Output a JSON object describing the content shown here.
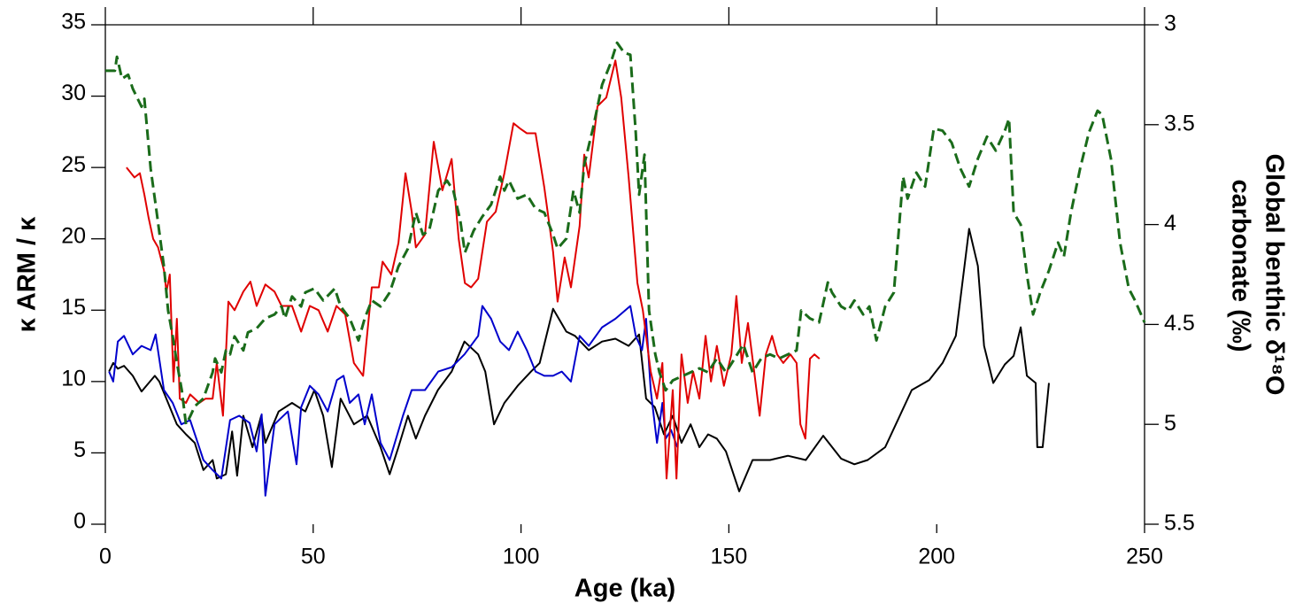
{
  "chart_data": {
    "type": "line",
    "xlabel": "Age (ka)",
    "ylabel": "κ ARM / κ",
    "y2label": [
      "Global benthic δ¹⁸O",
      "carbonate (‰)"
    ],
    "xlim": [
      0,
      250
    ],
    "xticks": [
      0,
      50,
      100,
      150,
      200,
      250
    ],
    "ylim": [
      0,
      35
    ],
    "yticks": [
      0,
      5,
      10,
      15,
      20,
      25,
      30,
      35
    ],
    "y2lim": [
      5.5,
      3
    ],
    "y2ticks": [
      3,
      3.5,
      4,
      4.5,
      5,
      5.5
    ],
    "series": [
      {
        "color": "#000000",
        "linestyle": "solid",
        "x": [
          0.9,
          1.9,
          3,
          4.5,
          6.6,
          8.7,
          11.9,
          13,
          15.1,
          17.2,
          19.4,
          21.5,
          23.6,
          25.8,
          26.8,
          29,
          30.5,
          31.7,
          33.2,
          35.4,
          37.5,
          38.5,
          41.7,
          44.9,
          48.1,
          50.3,
          52.4,
          54.5,
          56.6,
          59.8,
          63,
          66.2,
          68.4,
          70.5,
          72.8,
          74.7,
          76.9,
          80,
          83.3,
          86.4,
          89.7,
          91.4,
          93.5,
          96,
          99.2,
          102.4,
          104.5,
          107.7,
          110.9,
          113,
          116.3,
          119.5,
          122.7,
          125.9,
          128.4,
          130.1,
          132.2,
          134.4,
          136.5,
          138.6,
          140.8,
          142.9,
          145,
          147.1,
          149.3,
          152.5,
          155.7,
          159.9,
          164.2,
          168.5,
          172.7,
          177,
          180.2,
          183.4,
          187.6,
          194,
          198.2,
          201.4,
          204.6,
          207.8,
          209.9,
          211.4,
          213.6,
          216.4,
          218.5,
          220.2,
          221.7,
          223.8,
          224.2,
          225.5,
          227
        ],
        "values": [
          10.7,
          11.3,
          10.9,
          11.1,
          10.4,
          9.3,
          10.4,
          10,
          8.5,
          7,
          6.3,
          5.7,
          3.8,
          4.5,
          3.2,
          3.5,
          6.5,
          3.4,
          7.6,
          5.4,
          7.6,
          5.7,
          7.9,
          8.5,
          7.9,
          9.4,
          7.6,
          4,
          8.8,
          7,
          7.6,
          5.4,
          3.5,
          5.4,
          7.6,
          6,
          7.6,
          9.4,
          10.7,
          12.8,
          11.9,
          10.7,
          7,
          8.5,
          9.7,
          10.7,
          11.3,
          15.1,
          13.5,
          13.2,
          12.2,
          12.8,
          13,
          12.5,
          13.3,
          8.8,
          8.2,
          6.3,
          7.6,
          5.7,
          7,
          5.4,
          6.3,
          6,
          5.1,
          2.3,
          4.5,
          4.5,
          4.8,
          4.5,
          6.2,
          4.6,
          4.2,
          4.5,
          5.4,
          9.4,
          10.1,
          11.3,
          13.2,
          20.7,
          18.1,
          12.5,
          9.9,
          11.2,
          11.8,
          13.8,
          10.4,
          9.9,
          5.4,
          5.4,
          9.9
        ]
      },
      {
        "color": "#0000cc",
        "linestyle": "solid",
        "x": [
          0.9,
          1.9,
          3,
          4.5,
          6.6,
          8.7,
          10.9,
          12.1,
          14.1,
          16.2,
          18.3,
          20.4,
          21.9,
          23.6,
          25.8,
          27.9,
          30,
          32.2,
          34.7,
          36.4,
          37.6,
          38.5,
          40.7,
          43.9,
          46,
          47.1,
          49.2,
          51.3,
          53.5,
          55.7,
          57.3,
          58.8,
          60.9,
          62.4,
          64.1,
          66.2,
          68.4,
          71.6,
          73.7,
          76.9,
          80.1,
          83.3,
          86.4,
          89.7,
          90.7,
          92.8,
          95,
          97.1,
          99.2,
          101.4,
          103.5,
          105.6,
          107.7,
          109.8,
          112,
          114.1,
          116.3,
          119.5,
          122.7,
          126.3,
          127.6,
          129.1,
          130.1,
          131.2,
          132.7,
          134,
          134.8,
          136.1,
          137.6
        ],
        "values": [
          10.7,
          10,
          12.8,
          13.2,
          11.9,
          12.5,
          12.2,
          13.3,
          9.4,
          8.5,
          7,
          7.3,
          6,
          4.5,
          3.8,
          3.2,
          7.3,
          7.6,
          7.1,
          5.1,
          7.7,
          2,
          7,
          7.9,
          4.2,
          8.2,
          9.7,
          9.1,
          7.9,
          10.1,
          10.4,
          8.5,
          9.1,
          7,
          9.1,
          5.7,
          4.5,
          7.6,
          9.4,
          9.4,
          10.7,
          11,
          11.9,
          13.2,
          15.3,
          14.4,
          12.8,
          12.2,
          13.5,
          12.2,
          10.7,
          10.4,
          10.4,
          10.7,
          10,
          13.2,
          12.5,
          13.8,
          14.4,
          15.3,
          13.2,
          12.2,
          14.4,
          9.4,
          5.7,
          8.5,
          6,
          6.6,
          5.4
        ]
      },
      {
        "color": "#e00000",
        "linestyle": "solid",
        "x": [
          5.1,
          6.2,
          7,
          8.3,
          9.4,
          10.4,
          11.5,
          12.7,
          14.1,
          14.7,
          15.5,
          16.4,
          17.2,
          17.9,
          19.4,
          20.4,
          22.6,
          24.1,
          25.8,
          26.8,
          28.3,
          29.6,
          31.1,
          33.2,
          34.9,
          36.4,
          38.5,
          40.7,
          42.4,
          44.9,
          47.1,
          49.2,
          51.3,
          53.5,
          55.6,
          57.7,
          59.8,
          62,
          64.1,
          65.8,
          66.7,
          68.8,
          70.5,
          72.2,
          73.7,
          74.7,
          76.9,
          79,
          81.1,
          83.3,
          85,
          86.5,
          88,
          89.7,
          91.8,
          93.9,
          96,
          98.2,
          99.9,
          101.4,
          103.5,
          105.6,
          107.7,
          108.8,
          110.5,
          112,
          114.1,
          115.2,
          116.3,
          118.4,
          120.5,
          122.7,
          124.1,
          125.9,
          128,
          129.3,
          130.1,
          131.2,
          132.7,
          134,
          135,
          136.5,
          137.4,
          138.6,
          140.1,
          141.4,
          142.9,
          144.4,
          145.7,
          147.1,
          148.8,
          150.6,
          151.8,
          153.1,
          154.6,
          156.1,
          157.4,
          158.9,
          160.4,
          161.6,
          163.1,
          164.8,
          166.3,
          167.2,
          168.4,
          169.5,
          170.6,
          171.8
        ],
        "values": [
          25,
          24.6,
          24.3,
          24.6,
          23.1,
          21.5,
          20,
          19.4,
          17.8,
          16.3,
          17.5,
          10,
          14.4,
          8.8,
          8.5,
          9.1,
          8.5,
          8.8,
          8.8,
          11.3,
          7.6,
          15.6,
          15,
          16.3,
          17,
          15.3,
          16.8,
          16.3,
          15.3,
          15.3,
          13.5,
          15.3,
          15,
          13.5,
          15.3,
          14.7,
          11.3,
          10.4,
          16.6,
          16.6,
          18.4,
          17.5,
          19.7,
          24.6,
          21.9,
          19.4,
          20.3,
          26.8,
          23.4,
          25.6,
          20,
          16.9,
          16.6,
          17.2,
          21.2,
          21.9,
          24.6,
          28.1,
          27.7,
          27.4,
          27.4,
          23.6,
          19.1,
          15.6,
          18.7,
          16.6,
          20.9,
          25.9,
          24.3,
          29.3,
          29.9,
          32.5,
          29.9,
          24.3,
          16.9,
          15,
          13.2,
          10.7,
          8.8,
          11.3,
          3.2,
          9.4,
          3.2,
          11.9,
          8.5,
          10.7,
          8.8,
          13.2,
          10,
          12.5,
          9.7,
          11.9,
          16,
          11.3,
          14.1,
          10.7,
          7.6,
          11.9,
          13.2,
          11.9,
          11.3,
          11.9,
          11.3,
          7,
          6,
          11.6,
          11.9,
          11.6
        ]
      },
      {
        "color": "#1a6b1a",
        "linestyle": "dashed",
        "axis": "y2",
        "x": [
          0,
          2.3,
          2.8,
          4,
          5.5,
          6.6,
          8.7,
          9.4,
          10.9,
          12.1,
          14.1,
          15.1,
          16.2,
          17.2,
          18.4,
          19.4,
          20.4,
          21.5,
          23.6,
          25.8,
          26.4,
          27.9,
          29,
          30,
          31.1,
          33.2,
          34.3,
          36.4,
          38.5,
          40.7,
          42.4,
          43.2,
          44.9,
          47.1,
          48.1,
          50.3,
          52.4,
          55.2,
          56.6,
          58.8,
          60.9,
          62.4,
          64.1,
          66.2,
          68.4,
          70.5,
          72.8,
          74.7,
          76.4,
          77.9,
          80.1,
          82.2,
          83.7,
          85.4,
          86.5,
          88.6,
          90.7,
          92.8,
          95,
          96,
          97.1,
          99.2,
          101.4,
          103.5,
          105.6,
          107.7,
          108.8,
          110.9,
          112.6,
          114.1,
          115.2,
          117.3,
          119.5,
          121.6,
          123.1,
          124.8,
          126.3,
          127.6,
          128.4,
          129.7,
          130.8,
          132.3,
          133.3,
          134.8,
          136.5,
          138.6,
          140.8,
          142.9,
          145,
          147.1,
          149.3,
          151.4,
          153.5,
          155.7,
          157.8,
          159.9,
          162.1,
          164.2,
          166.3,
          167.4,
          169.5,
          171.7,
          173.8,
          174.8,
          177,
          178.7,
          180.2,
          182.3,
          183.8,
          185.5,
          187.6,
          189.7,
          191.9,
          193,
          195.1,
          197.2,
          199.3,
          201.4,
          203.6,
          205.7,
          207.8,
          209.9,
          212.1,
          214.2,
          216.4,
          217.4,
          218.5,
          220.2,
          221.7,
          223.2,
          224.9,
          227,
          229.2,
          230.6,
          232.3,
          234.5,
          236.6,
          238.7,
          239.8,
          241.9,
          244.1,
          246.2,
          247.7,
          250
        ],
        "values": [
          3.23,
          3.23,
          3.16,
          3.27,
          3.25,
          3.32,
          3.41,
          3.37,
          3.72,
          3.9,
          4.21,
          4.43,
          4.56,
          4.69,
          4.83,
          5,
          4.96,
          4.91,
          4.87,
          4.74,
          4.67,
          4.74,
          4.63,
          4.65,
          4.56,
          4.63,
          4.54,
          4.52,
          4.47,
          4.45,
          4.41,
          4.47,
          4.36,
          4.41,
          4.34,
          4.32,
          4.38,
          4.32,
          4.41,
          4.47,
          4.58,
          4.47,
          4.38,
          4.41,
          4.34,
          4.21,
          4.12,
          3.94,
          4.05,
          4.03,
          3.83,
          3.78,
          3.83,
          3.98,
          4.14,
          4.03,
          3.96,
          3.9,
          3.76,
          3.83,
          3.78,
          3.87,
          3.85,
          3.92,
          3.94,
          4.05,
          4.12,
          4.07,
          3.83,
          3.94,
          3.7,
          3.52,
          3.3,
          3.19,
          3.09,
          3.14,
          3.15,
          3.54,
          3.85,
          3.65,
          4.43,
          4.65,
          4.74,
          4.83,
          4.78,
          4.76,
          4.74,
          4.72,
          4.74,
          4.67,
          4.74,
          4.67,
          4.6,
          4.74,
          4.67,
          4.65,
          4.67,
          4.65,
          4.63,
          4.43,
          4.47,
          4.49,
          4.29,
          4.34,
          4.41,
          4.43,
          4.38,
          4.45,
          4.41,
          4.58,
          4.41,
          4.34,
          3.76,
          3.87,
          3.74,
          3.81,
          3.52,
          3.53,
          3.59,
          3.72,
          3.81,
          3.67,
          3.56,
          3.63,
          3.53,
          3.47,
          3.94,
          4,
          4.25,
          4.45,
          4.34,
          4.23,
          4.09,
          4.16,
          3.94,
          3.72,
          3.54,
          3.43,
          3.45,
          3.67,
          4.09,
          4.32,
          4.38,
          4.49
        ]
      }
    ]
  }
}
